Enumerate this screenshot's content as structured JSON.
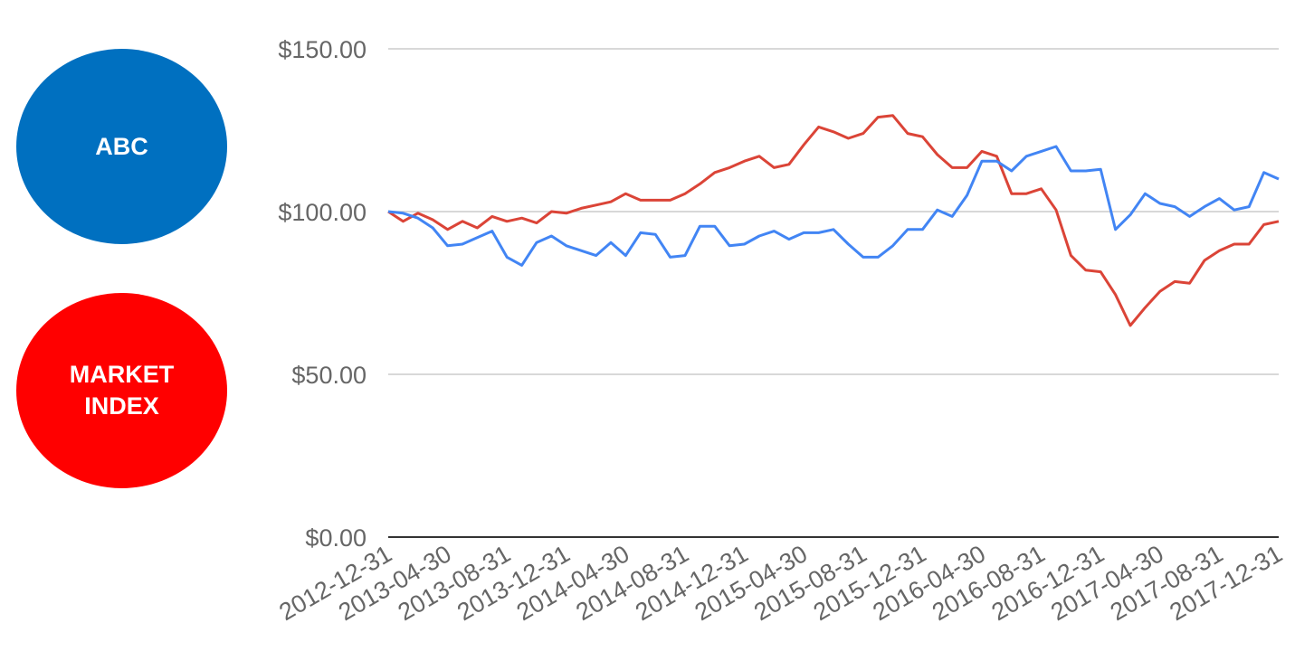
{
  "legend": {
    "items": [
      {
        "label": "ABC",
        "color": "#0070c0"
      },
      {
        "label": "MARKET\nINDEX",
        "color": "#ff0000"
      }
    ]
  },
  "chart_data": {
    "type": "line",
    "title": "",
    "xlabel": "",
    "ylabel": "",
    "ylim": [
      0,
      150
    ],
    "yticks": [
      0,
      50,
      100,
      150
    ],
    "y_tick_labels": [
      "$0.00",
      "$50.00",
      "$100.00",
      "$150.00"
    ],
    "x_tick_labels": [
      "2012-12-31",
      "2013-04-30",
      "2013-08-31",
      "2013-12-31",
      "2014-04-30",
      "2014-08-31",
      "2014-12-31",
      "2015-04-30",
      "2015-08-31",
      "2015-12-31",
      "2016-04-30",
      "2016-08-31",
      "2016-12-31",
      "2017-04-30",
      "2017-08-31",
      "2017-12-31"
    ],
    "grid": true,
    "legend_position": "left",
    "x": [
      "2012-12-31",
      "2013-01-31",
      "2013-02-28",
      "2013-03-31",
      "2013-04-30",
      "2013-05-31",
      "2013-06-30",
      "2013-07-31",
      "2013-08-31",
      "2013-09-30",
      "2013-10-31",
      "2013-11-30",
      "2013-12-31",
      "2014-01-31",
      "2014-02-28",
      "2014-03-31",
      "2014-04-30",
      "2014-05-31",
      "2014-06-30",
      "2014-07-31",
      "2014-08-31",
      "2014-09-30",
      "2014-10-31",
      "2014-11-30",
      "2014-12-31",
      "2015-01-31",
      "2015-02-28",
      "2015-03-31",
      "2015-04-30",
      "2015-05-31",
      "2015-06-30",
      "2015-07-31",
      "2015-08-31",
      "2015-09-30",
      "2015-10-31",
      "2015-11-30",
      "2015-12-31",
      "2016-01-31",
      "2016-02-29",
      "2016-03-31",
      "2016-04-30",
      "2016-05-31",
      "2016-06-30",
      "2016-07-31",
      "2016-08-31",
      "2016-09-30",
      "2016-10-31",
      "2016-11-30",
      "2016-12-31",
      "2017-01-31",
      "2017-02-28",
      "2017-03-31",
      "2017-04-30",
      "2017-05-31",
      "2017-06-30",
      "2017-07-31",
      "2017-08-31",
      "2017-09-30",
      "2017-10-31",
      "2017-11-30",
      "2017-12-31"
    ],
    "series": [
      {
        "color": "#4285f4",
        "values": [
          100,
          99.5,
          98,
          95,
          89.5,
          90,
          92,
          94,
          86,
          83.5,
          90.5,
          92.5,
          89.5,
          88,
          86.5,
          90.5,
          86.5,
          93.5,
          93,
          86,
          86.5,
          95.5,
          95.5,
          89.5,
          90,
          92.5,
          94,
          91.5,
          93.5,
          93.5,
          94.5,
          90,
          86,
          86,
          89.5,
          94.5,
          94.5,
          100.5,
          98.5,
          105,
          115.5,
          115.5,
          112.5,
          117,
          118.5,
          120,
          112.5,
          112.5,
          113,
          94.5,
          99,
          105.5,
          102.5,
          101.5,
          98.5,
          101.5,
          104,
          100.5,
          101.5,
          112,
          110
        ]
      },
      {
        "color": "#db4437",
        "values": [
          100,
          97,
          99.5,
          97.5,
          94.5,
          97,
          95,
          98.5,
          97,
          98,
          96.5,
          100,
          99.5,
          101,
          102,
          103,
          105.5,
          103.5,
          103.5,
          103.5,
          105.5,
          108.5,
          112,
          113.5,
          115.5,
          117,
          113.5,
          114.5,
          120.5,
          126,
          124.5,
          122.5,
          124,
          129,
          129.5,
          124,
          123,
          117.5,
          113.5,
          113.5,
          118.5,
          117,
          105.5,
          105.5,
          107,
          100.5,
          86.5,
          82,
          81.5,
          74.5,
          65,
          70.5,
          75.5,
          78.5,
          78,
          85,
          88,
          90,
          90,
          96,
          97
        ]
      }
    ]
  }
}
